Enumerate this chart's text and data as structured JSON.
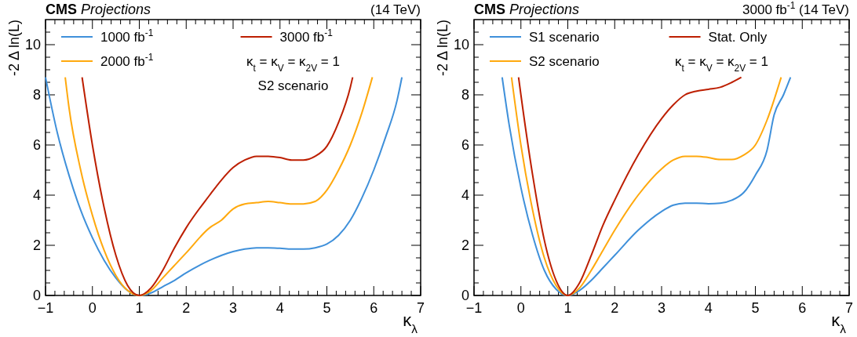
{
  "chart_data": [
    {
      "type": "line",
      "title": "CMS Projections",
      "subtitle": "(14 TeV)",
      "xlabel": "κ$_{λ}$",
      "ylabel": "-2 Δ ln(L)",
      "legend": "top left",
      "line_style": "solid",
      "grid": false,
      "annotations": [
        "κ$_{t}$ = κ$_{V}$ = κ$_{2V}$ = 1",
        "S2 scenario"
      ],
      "xlim": [
        -1,
        7
      ],
      "ylim": [
        0,
        11
      ],
      "xticks": [
        -1,
        {
          "value": -0.8,
          "label": null
        },
        {
          "value": -0.6,
          "label": null
        },
        {
          "value": -0.4,
          "label": null
        },
        {
          "value": -0.2,
          "label": null
        },
        0,
        {
          "value": 0.2,
          "label": null
        },
        {
          "value": 0.4,
          "label": null
        },
        {
          "value": 0.6,
          "label": null
        },
        {
          "value": 0.8,
          "label": null
        },
        1,
        {
          "value": 1.2,
          "label": null
        },
        {
          "value": 1.4,
          "label": null
        },
        {
          "value": 1.6,
          "label": null
        },
        {
          "value": 1.8,
          "label": null
        },
        2,
        {
          "value": 2.2,
          "label": null
        },
        {
          "value": 2.4,
          "label": null
        },
        {
          "value": 2.6,
          "label": null
        },
        {
          "value": 2.8,
          "label": null
        },
        3,
        {
          "value": 3.2,
          "label": null
        },
        {
          "value": 3.4,
          "label": null
        },
        {
          "value": 3.6,
          "label": null
        },
        {
          "value": 3.8,
          "label": null
        },
        4,
        {
          "value": 4.2,
          "label": null
        },
        {
          "value": 4.4,
          "label": null
        },
        {
          "value": 4.6,
          "label": null
        },
        {
          "value": 4.8,
          "label": null
        },
        5,
        {
          "value": 5.2,
          "label": null
        },
        {
          "value": 5.4,
          "label": null
        },
        {
          "value": 5.6,
          "label": null
        },
        {
          "value": 5.8,
          "label": null
        },
        6,
        {
          "value": 6.2,
          "label": null
        },
        {
          "value": 6.4,
          "label": null
        },
        {
          "value": 6.6,
          "label": null
        },
        {
          "value": 6.8,
          "label": null
        },
        7
      ],
      "yticks": [
        0,
        {
          "value": 0.5,
          "label": null
        },
        {
          "value": 1,
          "label": null
        },
        {
          "value": 1.5,
          "label": null
        },
        2,
        {
          "value": 2.5,
          "label": null
        },
        {
          "value": 3,
          "label": null
        },
        {
          "value": 3.5,
          "label": null
        },
        4,
        {
          "value": 4.5,
          "label": null
        },
        {
          "value": 5,
          "label": null
        },
        {
          "value": 5.5,
          "label": null
        },
        6,
        {
          "value": 6.5,
          "label": null
        },
        {
          "value": 7,
          "label": null
        },
        {
          "value": 7.5,
          "label": null
        },
        8,
        {
          "value": 8.5,
          "label": null
        },
        {
          "value": 9,
          "label": null
        },
        {
          "value": 9.5,
          "label": null
        },
        10,
        {
          "value": 10.5,
          "label": null
        }
      ],
      "series": [
        {
          "name": "1000 fb$^{-1}$",
          "color": "#3f90da",
          "x": [
            -1,
            -0.75,
            -0.5,
            -0.25,
            0,
            0.25,
            0.5,
            0.75,
            1,
            1.25,
            1.5,
            1.75,
            2,
            2.5,
            3,
            3.25,
            3.5,
            3.75,
            4,
            4.25,
            4.5,
            4.75,
            5,
            5.25,
            5.5,
            5.75,
            6,
            6.25,
            6.5,
            6.6
          ],
          "values": [
            8.7,
            6.5,
            4.8,
            3.4,
            2.3,
            1.4,
            0.7,
            0.2,
            0,
            0.1,
            0.35,
            0.6,
            0.9,
            1.4,
            1.75,
            1.85,
            1.9,
            1.9,
            1.88,
            1.85,
            1.85,
            1.9,
            2.05,
            2.4,
            3.0,
            3.9,
            5.0,
            6.3,
            7.8,
            8.7
          ]
        },
        {
          "name": "2000 fb$^{-1}$",
          "color": "#ffa90e",
          "x": [
            -0.58,
            -0.5,
            -0.25,
            0,
            0.25,
            0.5,
            0.75,
            1,
            1.25,
            1.5,
            1.75,
            2,
            2.5,
            2.75,
            3,
            3.25,
            3.5,
            3.75,
            4,
            4.25,
            4.5,
            4.75,
            5,
            5.25,
            5.5,
            5.75,
            5.97
          ],
          "values": [
            8.7,
            7.5,
            5.0,
            3.2,
            1.8,
            0.8,
            0.2,
            0,
            0.2,
            0.7,
            1.2,
            1.7,
            2.7,
            3.0,
            3.45,
            3.65,
            3.7,
            3.75,
            3.7,
            3.65,
            3.65,
            3.75,
            4.2,
            5.0,
            6.0,
            7.3,
            8.7
          ]
        },
        {
          "name": "3000 fb$^{-1}$",
          "color": "#bd1f01",
          "x": [
            -0.22,
            0,
            0.25,
            0.5,
            0.75,
            1,
            1.25,
            1.5,
            1.75,
            2,
            2.5,
            2.75,
            3,
            3.25,
            3.5,
            3.75,
            4,
            4.25,
            4.5,
            4.75,
            5,
            5.25,
            5.5,
            5.55
          ],
          "values": [
            8.7,
            6.0,
            3.5,
            1.6,
            0.4,
            0,
            0.3,
            1.0,
            1.9,
            2.7,
            4.0,
            4.6,
            5.1,
            5.4,
            5.55,
            5.55,
            5.5,
            5.4,
            5.4,
            5.55,
            5.95,
            6.9,
            8.3,
            8.7
          ]
        }
      ]
    },
    {
      "type": "line",
      "title": "CMS Projections",
      "subtitle": "3000 fb$^{-1}$ (14 TeV)",
      "xlabel": "κ$_{λ}$",
      "ylabel": "-2 Δ ln(L)",
      "legend": "top left",
      "line_style": "solid",
      "grid": false,
      "annotations": [
        "κ$_{t}$ = κ$_{V}$ = κ$_{2V}$ = 1"
      ],
      "xlim": [
        -1,
        7
      ],
      "ylim": [
        0,
        11
      ],
      "xticks": [
        -1,
        {
          "value": -0.8,
          "label": null
        },
        {
          "value": -0.6,
          "label": null
        },
        {
          "value": -0.4,
          "label": null
        },
        {
          "value": -0.2,
          "label": null
        },
        0,
        {
          "value": 0.2,
          "label": null
        },
        {
          "value": 0.4,
          "label": null
        },
        {
          "value": 0.6,
          "label": null
        },
        {
          "value": 0.8,
          "label": null
        },
        1,
        {
          "value": 1.2,
          "label": null
        },
        {
          "value": 1.4,
          "label": null
        },
        {
          "value": 1.6,
          "label": null
        },
        {
          "value": 1.8,
          "label": null
        },
        2,
        {
          "value": 2.2,
          "label": null
        },
        {
          "value": 2.4,
          "label": null
        },
        {
          "value": 2.6,
          "label": null
        },
        {
          "value": 2.8,
          "label": null
        },
        3,
        {
          "value": 3.2,
          "label": null
        },
        {
          "value": 3.4,
          "label": null
        },
        {
          "value": 3.6,
          "label": null
        },
        {
          "value": 3.8,
          "label": null
        },
        4,
        {
          "value": 4.2,
          "label": null
        },
        {
          "value": 4.4,
          "label": null
        },
        {
          "value": 4.6,
          "label": null
        },
        {
          "value": 4.8,
          "label": null
        },
        5,
        {
          "value": 5.2,
          "label": null
        },
        {
          "value": 5.4,
          "label": null
        },
        {
          "value": 5.6,
          "label": null
        },
        {
          "value": 5.8,
          "label": null
        },
        6,
        {
          "value": 6.2,
          "label": null
        },
        {
          "value": 6.4,
          "label": null
        },
        {
          "value": 6.6,
          "label": null
        },
        {
          "value": 6.8,
          "label": null
        },
        7
      ],
      "yticks": [
        0,
        {
          "value": 0.5,
          "label": null
        },
        {
          "value": 1,
          "label": null
        },
        {
          "value": 1.5,
          "label": null
        },
        2,
        {
          "value": 2.5,
          "label": null
        },
        {
          "value": 3,
          "label": null
        },
        {
          "value": 3.5,
          "label": null
        },
        4,
        {
          "value": 4.5,
          "label": null
        },
        {
          "value": 5,
          "label": null
        },
        {
          "value": 5.5,
          "label": null
        },
        6,
        {
          "value": 6.5,
          "label": null
        },
        {
          "value": 7,
          "label": null
        },
        {
          "value": 7.5,
          "label": null
        },
        8,
        {
          "value": 8.5,
          "label": null
        },
        {
          "value": 9,
          "label": null
        },
        {
          "value": 9.5,
          "label": null
        },
        10,
        {
          "value": 10.5,
          "label": null
        }
      ],
      "series": [
        {
          "name": "S1 scenario",
          "color": "#3f90da",
          "x": [
            -0.4,
            -0.25,
            0,
            0.25,
            0.5,
            0.75,
            1,
            1.25,
            1.5,
            1.75,
            2,
            2.5,
            3,
            3.25,
            3.5,
            3.75,
            4,
            4.25,
            4.5,
            4.75,
            5,
            5.25,
            5.4,
            5.6,
            5.75
          ],
          "values": [
            8.7,
            6.8,
            4.3,
            2.4,
            1.0,
            0.25,
            0,
            0.2,
            0.6,
            1.1,
            1.6,
            2.6,
            3.35,
            3.6,
            3.68,
            3.68,
            3.66,
            3.68,
            3.8,
            4.1,
            4.8,
            5.8,
            7.2,
            8.0,
            8.7
          ]
        },
        {
          "name": "S2 scenario",
          "color": "#ffa90e",
          "x": [
            -0.2,
            0,
            0.25,
            0.5,
            0.75,
            1,
            1.25,
            1.5,
            1.75,
            2,
            2.5,
            3,
            3.25,
            3.5,
            3.75,
            4,
            4.25,
            4.5,
            4.75,
            5,
            5.25,
            5.55
          ],
          "values": [
            8.7,
            6.0,
            3.4,
            1.5,
            0.4,
            0,
            0.3,
            1.0,
            1.8,
            2.6,
            4.0,
            5.05,
            5.4,
            5.55,
            5.55,
            5.5,
            5.42,
            5.42,
            5.6,
            6.0,
            7.0,
            8.7
          ]
        },
        {
          "name": "Stat. Only",
          "color": "#bd1f01",
          "x": [
            -0.05,
            0,
            0.25,
            0.5,
            0.75,
            1,
            1.25,
            1.5,
            1.75,
            2,
            2.5,
            3,
            3.25,
            3.5,
            3.75,
            4,
            4.25,
            4.5,
            4.7
          ],
          "values": [
            8.7,
            8.0,
            4.8,
            2.2,
            0.6,
            0,
            0.5,
            1.6,
            2.8,
            3.8,
            5.6,
            7.05,
            7.6,
            8.0,
            8.15,
            8.22,
            8.3,
            8.5,
            8.7
          ]
        }
      ]
    }
  ]
}
